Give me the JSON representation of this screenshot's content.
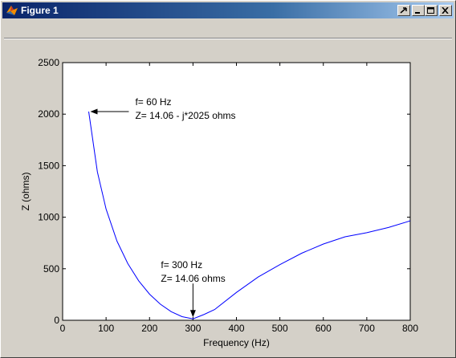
{
  "window": {
    "title": "Figure 1",
    "buttons": [
      "dock-icon",
      "minimize-icon",
      "maximize-icon",
      "close-icon"
    ]
  },
  "chart_data": {
    "type": "line",
    "xlabel": "Frequency (Hz)",
    "ylabel": "Z (ohms)",
    "xlim": [
      0,
      800
    ],
    "ylim": [
      0,
      2500
    ],
    "xticks": [
      0,
      100,
      200,
      300,
      400,
      500,
      600,
      700,
      800
    ],
    "yticks": [
      0,
      500,
      1000,
      1500,
      2000,
      2500
    ],
    "grid": false,
    "series": [
      {
        "color": "#0000ff",
        "x": [
          60,
          80,
          100,
          125,
          150,
          175,
          200,
          225,
          250,
          275,
          300,
          325,
          350,
          400,
          450,
          500,
          550,
          600,
          650,
          700,
          750,
          800
        ],
        "y": [
          2025,
          1440,
          1080,
          768,
          550,
          383,
          253,
          156,
          83,
          35,
          14,
          55,
          104,
          270,
          420,
          540,
          650,
          740,
          810,
          850,
          900,
          965
        ]
      }
    ],
    "annotations": [
      {
        "line1": "f= 60 Hz",
        "line2": "Z= 14.06 - j*2025 ohms",
        "x": 60,
        "y": 2025,
        "arrow": "left"
      },
      {
        "line1": "f= 300 Hz",
        "line2": "Z= 14.06 ohms",
        "x": 300,
        "y": 14,
        "arrow": "down"
      }
    ]
  }
}
